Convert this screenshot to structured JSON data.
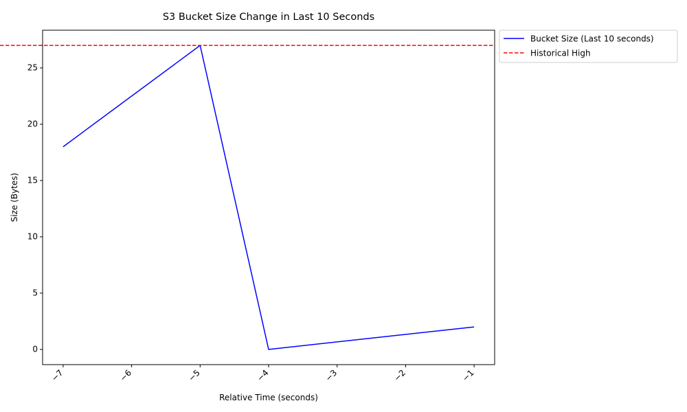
{
  "chart_data": {
    "type": "line",
    "title": "S3 Bucket Size Change in Last 10 Seconds",
    "xlabel": "Relative Time (seconds)",
    "ylabel": "Size (Bytes)",
    "xlim": [
      -7.3,
      -0.7
    ],
    "ylim": [
      -1.35,
      28.35
    ],
    "xticks": [
      -7,
      -6,
      -5,
      -4,
      -3,
      -2,
      -1
    ],
    "xtick_labels": [
      "−7",
      "−6",
      "−5",
      "−4",
      "−3",
      "−2",
      "−1"
    ],
    "xtick_rotation_deg": 45,
    "yticks": [
      0,
      5,
      10,
      15,
      20,
      25
    ],
    "ytick_labels": [
      "0",
      "5",
      "10",
      "15",
      "20",
      "25"
    ],
    "grid": false,
    "legend_position": "outside-top-right",
    "series": [
      {
        "name": "Bucket Size (Last 10 seconds)",
        "color": "#0000ff",
        "style": "solid",
        "x": [
          -7,
          -5,
          -4,
          -1
        ],
        "y": [
          18,
          27,
          0,
          2
        ]
      }
    ],
    "reference_lines": [
      {
        "name": "Historical High",
        "orientation": "horizontal",
        "value": 27,
        "color": "#ff0000",
        "style": "dashed"
      }
    ]
  }
}
